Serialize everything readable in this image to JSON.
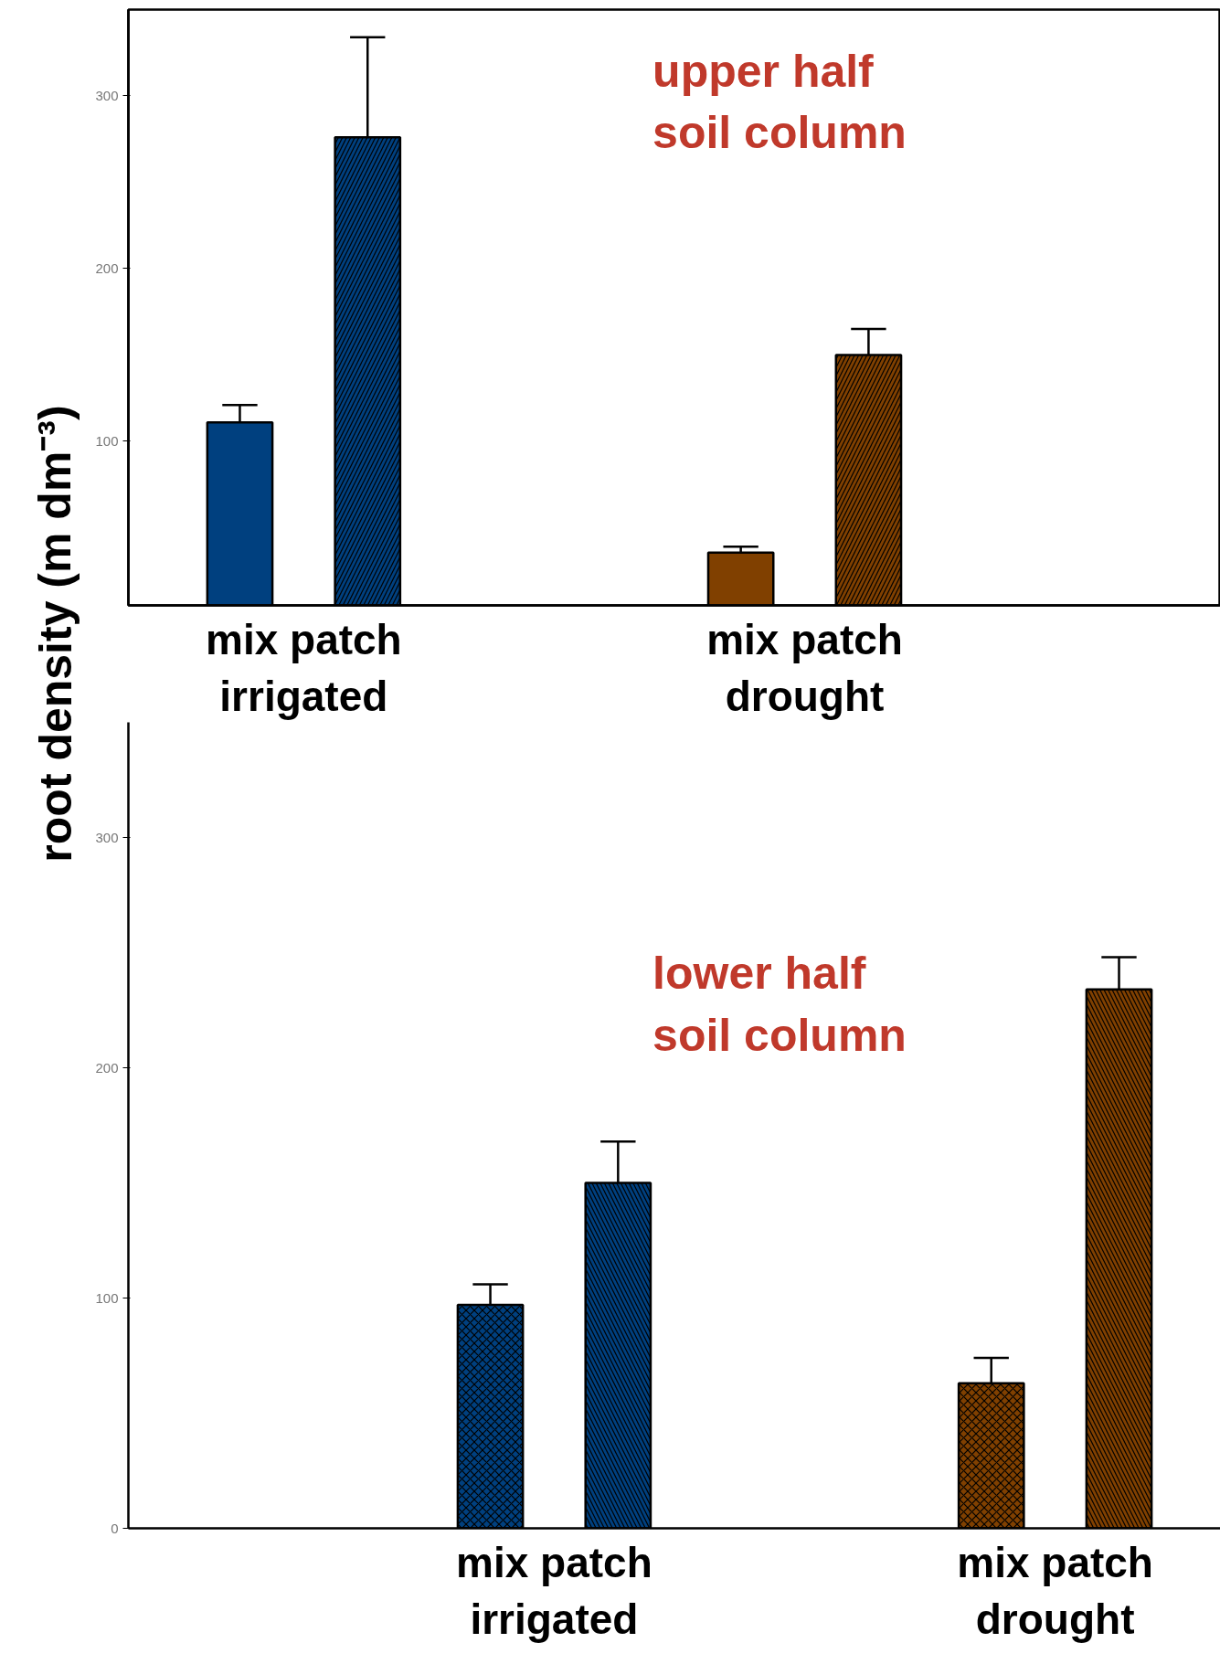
{
  "chart_data": [
    {
      "type": "bar",
      "title": "upper half\nsoil column",
      "ylabel": "root density (m dm⁻³)",
      "categories": [
        "mix patch\nirrigated",
        "mix patch\ndrought"
      ],
      "ylim": [
        5,
        350
      ],
      "yticks": [
        100,
        200,
        300
      ],
      "grid": false,
      "series": [
        {
          "colors": [
            "#00407f",
            "#804000"
          ],
          "values": [
            111,
            35.5
          ],
          "errors": [
            [
              111,
              121
            ],
            [
              35.5,
              39
            ]
          ]
        },
        {
          "colors": [
            "#00407f",
            "#804000"
          ],
          "values": [
            276,
            150
          ],
          "errors": [
            [
              276,
              334
            ],
            [
              150,
              165
            ]
          ]
        }
      ]
    },
    {
      "type": "bar",
      "title": "lower half\nsoil column",
      "categories": [
        "mix patch\nirrigated",
        "mix patch\ndrought"
      ],
      "ylim": [
        0,
        350
      ],
      "yticks": [
        0,
        100,
        200,
        300
      ],
      "grid": false,
      "series": [
        {
          "colors": [
            "#00407f",
            "#804000"
          ],
          "values": [
            97,
            63
          ],
          "errors": [
            [
              97,
              106
            ],
            [
              63,
              74
            ]
          ]
        },
        {
          "colors": [
            "#00407f",
            "#804000"
          ],
          "values": [
            150,
            234
          ],
          "errors": [
            [
              150,
              168
            ],
            [
              234,
              248
            ]
          ]
        }
      ]
    }
  ]
}
